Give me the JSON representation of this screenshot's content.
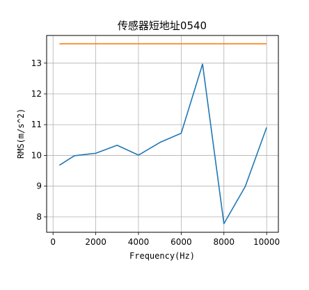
{
  "chart_data": {
    "type": "line",
    "title": "传感器短地址0540",
    "xlabel": "Frequency(Hz)",
    "ylabel": "RMS(m/s^2)",
    "xlim": [
      -300,
      10550
    ],
    "ylim": [
      7.5,
      13.9
    ],
    "xticks": [
      0,
      2000,
      4000,
      6000,
      8000,
      10000
    ],
    "yticks": [
      8,
      9,
      10,
      11,
      12,
      13
    ],
    "grid": true,
    "series": [
      {
        "color": "#1f77b4",
        "x": [
          300,
          1000,
          2000,
          3000,
          4000,
          5000,
          6000,
          7000,
          8000,
          9000,
          10000
        ],
        "y": [
          9.68,
          9.99,
          10.07,
          10.33,
          10.01,
          10.42,
          10.72,
          12.97,
          7.78,
          8.99,
          10.91
        ]
      },
      {
        "color": "#ff7f0e",
        "x": [
          300,
          10000
        ],
        "y": [
          13.63,
          13.63
        ]
      }
    ]
  }
}
